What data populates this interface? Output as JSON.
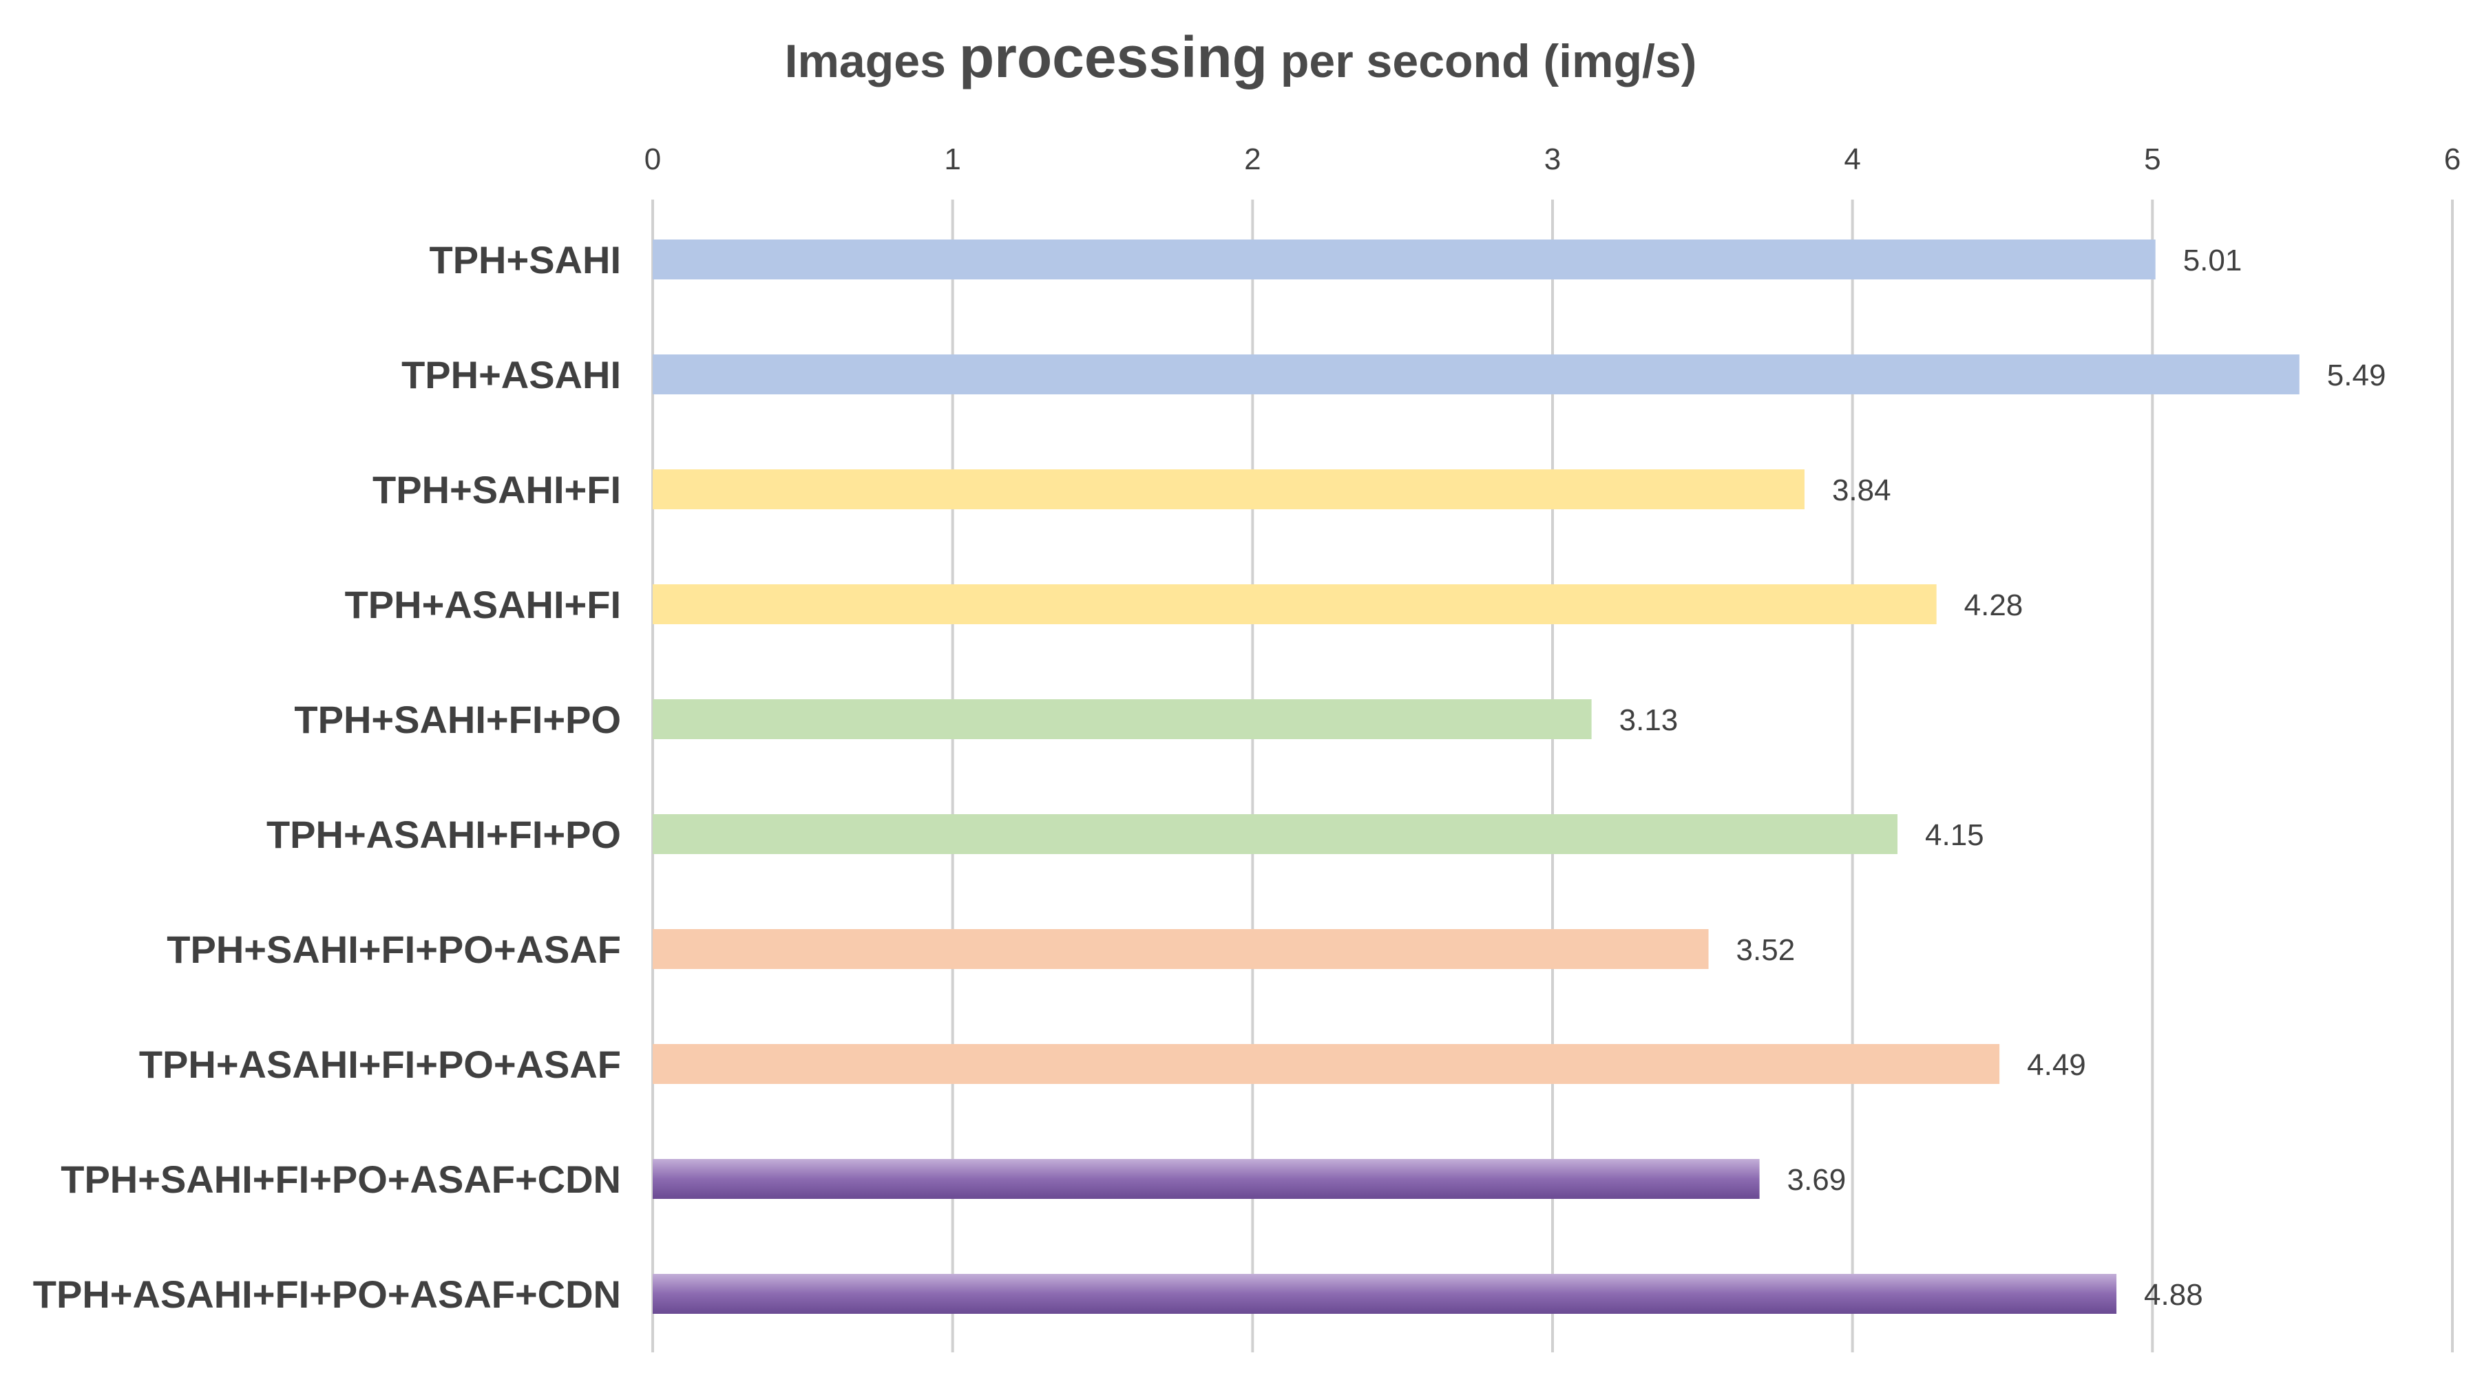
{
  "chart_data": {
    "type": "bar",
    "orientation": "horizontal",
    "title_parts": [
      "Images ",
      "processing",
      " per second (img/s)"
    ],
    "xlabel": "",
    "ylabel": "",
    "xlim": [
      0,
      6
    ],
    "x_ticks": [
      "0",
      "1",
      "2",
      "3",
      "4",
      "5",
      "6"
    ],
    "grid": true,
    "axis_position": "top",
    "categories": [
      "TPH+SAHI",
      "TPH+ASAHI",
      "TPH+SAHI+FI",
      "TPH+ASAHI+FI",
      "TPH+SAHI+FI+PO",
      "TPH+ASAHI+FI+PO",
      "TPH+SAHI+FI+PO+ASAF",
      "TPH+ASAHI+FI+PO+ASAF",
      "TPH+SAHI+FI+PO+ASAF+CDN",
      "TPH+ASAHI+FI+PO+ASAF+CDN"
    ],
    "values": [
      5.01,
      5.49,
      3.84,
      4.28,
      3.13,
      4.15,
      3.52,
      4.49,
      3.69,
      4.88
    ],
    "data_labels": [
      "5.01",
      "5.49",
      "3.84",
      "4.28",
      "3.13",
      "4.15",
      "3.52",
      "4.49",
      "3.69",
      "4.88"
    ],
    "bar_colors": [
      "#b4c7e7",
      "#b4c7e7",
      "#ffe699",
      "#ffe699",
      "#c5e0b4",
      "#c5e0b4",
      "#f8cbad",
      "#f8cbad",
      "#7a5a9e",
      "#7a5a9e"
    ],
    "gradient_bars": [
      false,
      false,
      false,
      false,
      false,
      false,
      false,
      false,
      true,
      true
    ]
  }
}
